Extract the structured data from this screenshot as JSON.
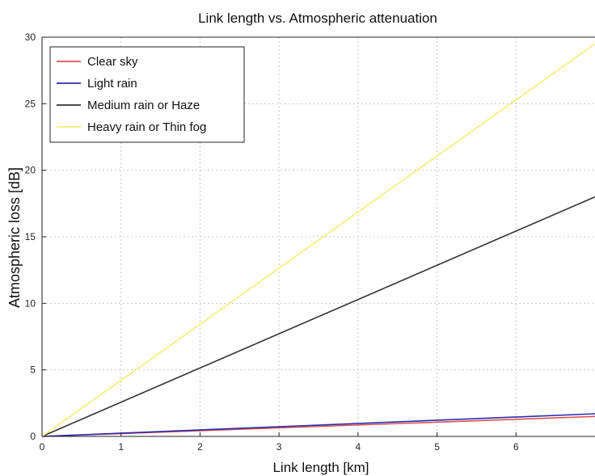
{
  "chart_data": {
    "type": "line",
    "title": "Link length vs. Atmospheric attenuation",
    "xlabel": "Link length [km]",
    "ylabel": "Atmospheric loss [dB]",
    "xlim": [
      0,
      7
    ],
    "ylim": [
      0,
      30
    ],
    "xticks": [
      "0",
      "1",
      "2",
      "3",
      "4",
      "5",
      "6"
    ],
    "yticks": [
      "0",
      "5",
      "10",
      "15",
      "20",
      "25",
      "30"
    ],
    "grid": true,
    "legend_position": "top-left",
    "x": [
      0,
      7
    ],
    "series": [
      {
        "name": "Clear sky",
        "color": "#d9534f",
        "values": [
          0,
          1.5
        ]
      },
      {
        "name": "Light rain",
        "color": "#2b2bb0",
        "values": [
          0,
          1.7
        ]
      },
      {
        "name": "Medium rain or Haze",
        "color": "#333333",
        "values": [
          0,
          18.0
        ]
      },
      {
        "name": "Heavy rain or Thin fog",
        "color": "#f0f07a",
        "values": [
          0,
          29.5
        ]
      }
    ]
  }
}
